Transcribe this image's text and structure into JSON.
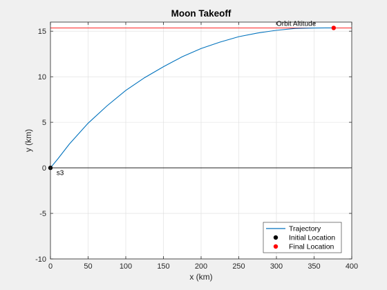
{
  "chart_data": {
    "type": "line",
    "title": "Moon Takeoff",
    "xlabel": "x (km)",
    "ylabel": "y (km)",
    "xlim": [
      0,
      400
    ],
    "ylim": [
      -10,
      16
    ],
    "xticks": [
      0,
      50,
      100,
      150,
      200,
      250,
      300,
      350,
      400
    ],
    "yticks": [
      -10,
      -5,
      0,
      5,
      10,
      15
    ],
    "grid": true,
    "legend_location": "bottom-right",
    "series": [
      {
        "name": "Trajectory",
        "kind": "line",
        "color": "#0072bd",
        "x": [
          0,
          10,
          25,
          50,
          75,
          100,
          125,
          150,
          175,
          200,
          225,
          250,
          275,
          300,
          325,
          350,
          365,
          376
        ],
        "y": [
          0,
          1.0,
          2.6,
          4.9,
          6.8,
          8.5,
          9.9,
          11.1,
          12.2,
          13.1,
          13.8,
          14.4,
          14.8,
          15.1,
          15.3,
          15.35,
          15.36,
          15.36
        ]
      },
      {
        "name": "Initial Location",
        "kind": "marker",
        "color": "#000000",
        "x": [
          0
        ],
        "y": [
          0
        ]
      },
      {
        "name": "Final Location",
        "kind": "marker",
        "color": "#ff0000",
        "x": [
          376
        ],
        "y": [
          15.36
        ]
      }
    ],
    "reference_lines": [
      {
        "orientation": "horizontal",
        "y": 0,
        "color": "#000000"
      },
      {
        "orientation": "horizontal",
        "y": 15.36,
        "color": "#ff0000"
      }
    ],
    "annotations": [
      {
        "text": "Orbit Altitude",
        "x": 300,
        "y": 15.6
      },
      {
        "text": "s3",
        "x": 8,
        "y": -0.8
      }
    ]
  }
}
